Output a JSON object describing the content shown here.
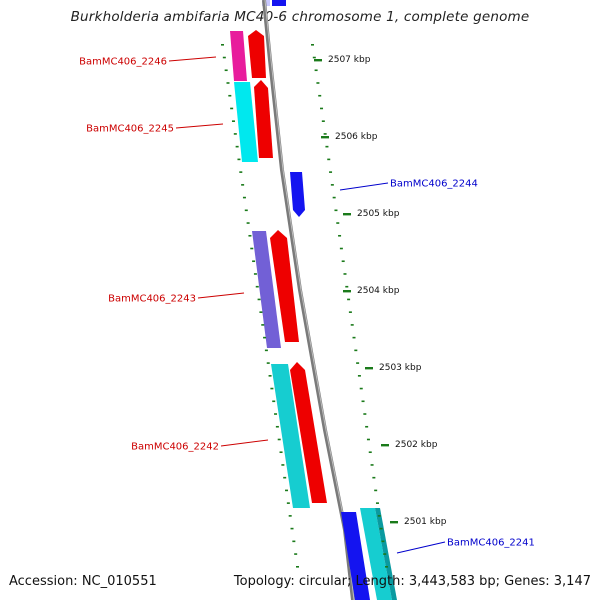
{
  "title": "Burkholderia ambifaria MC40-6 chromosome 1, complete genome",
  "footer": {
    "accession": "Accession: NC_010551",
    "summary": "Topology: circular; Length: 3,443,583 bp; Genes: 3,147"
  },
  "colors": {
    "reverse_label": "#cc0000",
    "forward_label": "#0000cc",
    "tick": "#1a7a1a",
    "backbone": "#808080"
  },
  "ticks": [
    "2507 kbp",
    "2506 kbp",
    "2505 kbp",
    "2504 kbp",
    "2503 kbp",
    "2502 kbp",
    "2501 kbp"
  ],
  "gene_labels": [
    {
      "name": "BamMC406_2246",
      "strand": "reverse"
    },
    {
      "name": "BamMC406_2245",
      "strand": "reverse"
    },
    {
      "name": "BamMC406_2244",
      "strand": "forward"
    },
    {
      "name": "BamMC406_2243",
      "strand": "reverse"
    },
    {
      "name": "BamMC406_2242",
      "strand": "reverse"
    },
    {
      "name": "BamMC406_2241",
      "strand": "forward"
    }
  ]
}
